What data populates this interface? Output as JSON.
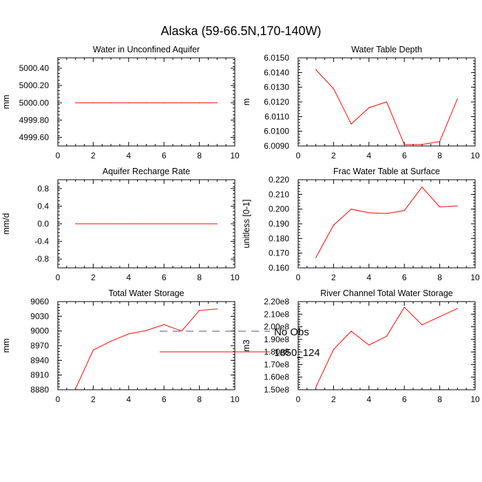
{
  "title": "Alaska (59-66.5N,170-140W)",
  "colors": {
    "model": "#ff0000",
    "obs": "#4a4aa8",
    "axis": "#000000"
  },
  "legend": [
    {
      "label": "No Obs",
      "style": "dashed",
      "color": "#4a4aa8"
    },
    {
      "label": "1850_124",
      "style": "solid",
      "color": "#ff0000"
    }
  ],
  "chart_data": [
    {
      "type": "line",
      "title": "Water in Unconfined Aquifer",
      "ylabel": "mm",
      "xlim": [
        0,
        10
      ],
      "ylim": [
        4999.5,
        5000.52
      ],
      "xticks": [
        0,
        2,
        4,
        6,
        8,
        10
      ],
      "yticks": [
        4999.6,
        4999.8,
        5000.0,
        5000.2,
        5000.4
      ],
      "ytick_labels": [
        "4999.60",
        "4999.80",
        "5000.00",
        "5000.20",
        "5000.40"
      ],
      "series": [
        {
          "name": "1850_124",
          "x": [
            1,
            2,
            3,
            4,
            5,
            6,
            7,
            8,
            9
          ],
          "values": [
            5000,
            5000,
            5000,
            5000,
            5000,
            5000,
            5000,
            5000,
            5000
          ]
        }
      ]
    },
    {
      "type": "line",
      "title": "Water Table Depth",
      "ylabel": "m",
      "xlim": [
        0,
        10
      ],
      "ylim": [
        6.009,
        6.015
      ],
      "xticks": [
        0,
        2,
        4,
        6,
        8,
        10
      ],
      "yticks": [
        6.009,
        6.01,
        6.011,
        6.012,
        6.013,
        6.014,
        6.015
      ],
      "ytick_labels": [
        "6.0090",
        "6.0100",
        "6.0110",
        "6.0120",
        "6.0130",
        "6.0140",
        "6.0150"
      ],
      "series": [
        {
          "name": "1850_124",
          "x": [
            1,
            2,
            3,
            4,
            5,
            6,
            7,
            8,
            9
          ],
          "values": [
            6.0142,
            6.0129,
            6.0105,
            6.0116,
            6.012,
            6.0091,
            6.0091,
            6.0093,
            6.0122
          ]
        }
      ]
    },
    {
      "type": "line",
      "title": "Aquifer Recharge Rate",
      "ylabel": "mm/d",
      "xlim": [
        0,
        10
      ],
      "ylim": [
        -1.0,
        1.0
      ],
      "xticks": [
        0,
        2,
        4,
        6,
        8,
        10
      ],
      "yticks": [
        -0.8,
        -0.4,
        0.0,
        0.4,
        0.8
      ],
      "ytick_labels": [
        "-0.8",
        "-0.4",
        "0.0",
        "0.4",
        "0.8"
      ],
      "series": [
        {
          "name": "1850_124",
          "x": [
            1,
            2,
            3,
            4,
            5,
            6,
            7,
            8,
            9
          ],
          "values": [
            0,
            0,
            0,
            0,
            0,
            0,
            0,
            0,
            0
          ]
        }
      ]
    },
    {
      "type": "line",
      "title": "Frac Water Table at Surface",
      "ylabel": "unitless [0-1]",
      "xlim": [
        0,
        10
      ],
      "ylim": [
        0.16,
        0.22
      ],
      "xticks": [
        0,
        2,
        4,
        6,
        8,
        10
      ],
      "yticks": [
        0.16,
        0.17,
        0.18,
        0.19,
        0.2,
        0.21,
        0.22
      ],
      "ytick_labels": [
        "0.160",
        "0.170",
        "0.180",
        "0.190",
        "0.200",
        "0.210",
        "0.220"
      ],
      "series": [
        {
          "name": "1850_124",
          "x": [
            1,
            2,
            3,
            4,
            5,
            6,
            7,
            8,
            9
          ],
          "values": [
            0.167,
            0.189,
            0.2,
            0.1975,
            0.197,
            0.199,
            0.215,
            0.2015,
            0.2022
          ]
        }
      ]
    },
    {
      "type": "line",
      "title": "Total Water Storage",
      "ylabel": "mm",
      "xlim": [
        0,
        10
      ],
      "ylim": [
        8880,
        9060
      ],
      "xticks": [
        0,
        2,
        4,
        6,
        8,
        10
      ],
      "yticks": [
        8880,
        8910,
        8940,
        8970,
        9000,
        9030,
        9060
      ],
      "ytick_labels": [
        "8880",
        "8910",
        "8940",
        "8970",
        "9000",
        "9030",
        "9060"
      ],
      "series": [
        {
          "name": "1850_124",
          "x": [
            1,
            2,
            3,
            4,
            5,
            6,
            7,
            8,
            9
          ],
          "values": [
            8882,
            8961,
            8979,
            8994,
            9001,
            9013,
            9000,
            9042,
            9045
          ]
        }
      ]
    },
    {
      "type": "line",
      "title": "River Channel Total Water Storage",
      "ylabel": "m3",
      "xlim": [
        0,
        10
      ],
      "ylim": [
        150000000,
        220000000
      ],
      "xticks": [
        0,
        2,
        4,
        6,
        8,
        10
      ],
      "yticks": [
        150000000,
        160000000,
        170000000,
        180000000,
        190000000,
        200000000,
        210000000,
        220000000
      ],
      "ytick_labels": [
        "1.50e8",
        "1.60e8",
        "1.70e8",
        "1.80e8",
        "1.90e8",
        "2.00e8",
        "2.10e8",
        "2.20e8"
      ],
      "series": [
        {
          "name": "1850_124",
          "x": [
            1,
            2,
            3,
            4,
            5,
            6,
            7,
            8,
            9
          ],
          "values": [
            152000000,
            182000000,
            196500000,
            185500000,
            192500000,
            215500000,
            201500000,
            208000000,
            214500000
          ]
        }
      ]
    }
  ]
}
